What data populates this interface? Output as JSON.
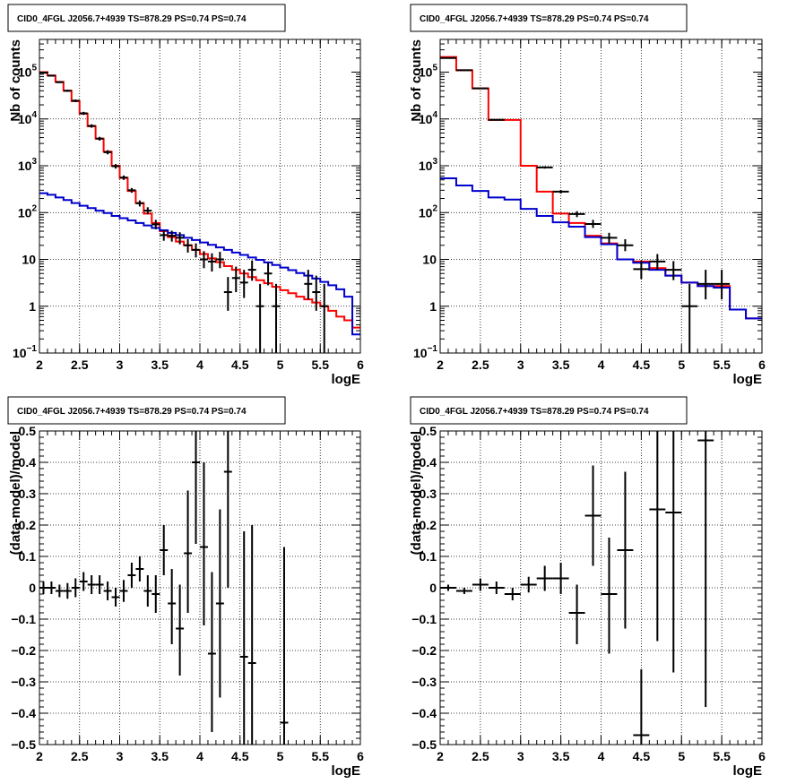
{
  "chart_data": [
    {
      "type": "histogram",
      "title": "CID0_4FGL J2056.7+4939 TS=878.29 PS=0.74 PS=0.74",
      "xlabel": "logE",
      "ylabel": "Nb of counts",
      "xlim": [
        2,
        6
      ],
      "ylim": [
        0.1,
        500000
      ],
      "yscale": "log",
      "grid": true,
      "x_ticks": [
        "2",
        "2.5",
        "3",
        "3.5",
        "4",
        "4.5",
        "5",
        "5.5",
        "6"
      ],
      "y_ticks": [
        {
          "v": 0.1,
          "b": "10",
          "e": "−1"
        },
        {
          "v": 1,
          "b": "1",
          "e": ""
        },
        {
          "v": 10,
          "b": "10",
          "e": ""
        },
        {
          "v": 100,
          "b": "10",
          "e": "2"
        },
        {
          "v": 1000,
          "b": "10",
          "e": "3"
        },
        {
          "v": 10000,
          "b": "10",
          "e": "4"
        },
        {
          "v": 100000,
          "b": "10",
          "e": "5"
        }
      ],
      "bin_edges": [
        2.0,
        2.1,
        2.2,
        2.3,
        2.4,
        2.5,
        2.6,
        2.7,
        2.8,
        2.9,
        3.0,
        3.1,
        3.2,
        3.3,
        3.4,
        3.5,
        3.6,
        3.7,
        3.8,
        3.9,
        4.0,
        4.1,
        4.2,
        4.3,
        4.4,
        4.5,
        4.6,
        4.7,
        4.8,
        4.9,
        5.0,
        5.1,
        5.2,
        5.3,
        5.4,
        5.5,
        5.6,
        5.7,
        5.8,
        5.9,
        6.0
      ],
      "series": [
        {
          "color": "#ff0000",
          "kind": "step",
          "values": [
            100000,
            85000,
            62000,
            40000,
            24000,
            13000,
            7000,
            3800,
            2000,
            1000,
            550,
            290,
            160,
            95,
            60,
            40,
            30,
            24,
            20,
            16,
            13,
            10.5,
            8.7,
            7.2,
            6.0,
            5.0,
            4.2,
            3.6,
            3.1,
            2.6,
            2.2,
            1.9,
            1.6,
            1.4,
            1.2,
            1.0,
            0.8,
            0.6,
            0.5,
            0.35
          ]
        },
        {
          "color": "#0000cc",
          "kind": "step",
          "values": [
            260,
            240,
            210,
            185,
            160,
            140,
            125,
            110,
            98,
            85,
            76,
            68,
            60,
            53,
            47,
            42,
            37,
            33,
            29,
            26,
            23,
            20.5,
            18,
            16,
            14,
            12.5,
            11,
            9.8,
            8.6,
            7.6,
            6.7,
            5.9,
            5.1,
            4.5,
            3.9,
            3.3,
            2.8,
            2.3,
            1.6,
            0.25
          ]
        },
        {
          "color": "#000000",
          "kind": "points",
          "points": [
            {
              "x": 2.05,
              "y": 97000,
              "lo": 94000,
              "hi": 100000
            },
            {
              "x": 2.15,
              "y": 84000,
              "lo": 81000,
              "hi": 87000
            },
            {
              "x": 2.25,
              "y": 61000,
              "lo": 58500,
              "hi": 63500
            },
            {
              "x": 2.35,
              "y": 40000,
              "lo": 38000,
              "hi": 42000
            },
            {
              "x": 2.45,
              "y": 24500,
              "lo": 23000,
              "hi": 26000
            },
            {
              "x": 2.55,
              "y": 13200,
              "lo": 12200,
              "hi": 14200
            },
            {
              "x": 2.65,
              "y": 7100,
              "lo": 6500,
              "hi": 7700
            },
            {
              "x": 2.75,
              "y": 3800,
              "lo": 3450,
              "hi": 4150
            },
            {
              "x": 2.85,
              "y": 1950,
              "lo": 1750,
              "hi": 2150
            },
            {
              "x": 2.95,
              "y": 980,
              "lo": 870,
              "hi": 1090
            },
            {
              "x": 3.05,
              "y": 560,
              "lo": 500,
              "hi": 620
            },
            {
              "x": 3.15,
              "y": 300,
              "lo": 265,
              "hi": 335
            },
            {
              "x": 3.25,
              "y": 158,
              "lo": 135,
              "hi": 182
            },
            {
              "x": 3.35,
              "y": 110,
              "lo": 92,
              "hi": 130
            },
            {
              "x": 3.45,
              "y": 56,
              "lo": 44,
              "hi": 70
            },
            {
              "x": 3.55,
              "y": 33,
              "lo": 25,
              "hi": 42
            },
            {
              "x": 3.65,
              "y": 32,
              "lo": 24,
              "hi": 41
            },
            {
              "x": 3.75,
              "y": 29,
              "lo": 21,
              "hi": 38
            },
            {
              "x": 3.85,
              "y": 20,
              "lo": 14,
              "hi": 27
            },
            {
              "x": 3.95,
              "y": 16,
              "lo": 11,
              "hi": 22
            },
            {
              "x": 4.05,
              "y": 10,
              "lo": 6.5,
              "hi": 15
            },
            {
              "x": 4.15,
              "y": 9,
              "lo": 5.5,
              "hi": 13.5
            },
            {
              "x": 4.25,
              "y": 10,
              "lo": 6.5,
              "hi": 14.5
            },
            {
              "x": 4.35,
              "y": 2,
              "lo": 0.8,
              "hi": 4.2
            },
            {
              "x": 4.45,
              "y": 4,
              "lo": 2,
              "hi": 7
            },
            {
              "x": 4.55,
              "y": 3.2,
              "lo": 1.5,
              "hi": 6
            },
            {
              "x": 4.65,
              "y": 6,
              "lo": 3.5,
              "hi": 9.5
            },
            {
              "x": 4.75,
              "y": 1,
              "lo": 0.1,
              "hi": 3
            },
            {
              "x": 4.85,
              "y": 5,
              "lo": 2.8,
              "hi": 8.5
            },
            {
              "x": 4.95,
              "y": 1,
              "lo": 0.1,
              "hi": 3
            },
            {
              "x": 5.35,
              "y": 3,
              "lo": 1.4,
              "hi": 6
            },
            {
              "x": 5.45,
              "y": 2,
              "lo": 0.8,
              "hi": 4.5
            },
            {
              "x": 5.55,
              "y": 1,
              "lo": 0.1,
              "hi": 3
            }
          ]
        }
      ]
    },
    {
      "type": "histogram",
      "title": "CID0_4FGL J2056.7+4939 TS=878.29 PS=0.74 PS=0.74",
      "xlabel": "logE",
      "ylabel": "Nb of counts",
      "xlim": [
        2,
        6
      ],
      "ylim": [
        0.1,
        500000
      ],
      "yscale": "log",
      "grid": true,
      "x_ticks": [
        "2",
        "2.5",
        "3",
        "3.5",
        "4",
        "4.5",
        "5",
        "5.5",
        "6"
      ],
      "y_ticks": [
        {
          "v": 0.1,
          "b": "10",
          "e": "−1"
        },
        {
          "v": 1,
          "b": "1",
          "e": ""
        },
        {
          "v": 10,
          "b": "10",
          "e": ""
        },
        {
          "v": 100,
          "b": "10",
          "e": "2"
        },
        {
          "v": 1000,
          "b": "10",
          "e": "3"
        },
        {
          "v": 10000,
          "b": "10",
          "e": "4"
        },
        {
          "v": 100000,
          "b": "10",
          "e": "5"
        }
      ],
      "bin_edges": [
        2.0,
        2.2,
        2.4,
        2.6,
        2.8,
        3.0,
        3.2,
        3.4,
        3.6,
        3.8,
        4.0,
        4.2,
        4.4,
        4.6,
        4.8,
        5.0,
        5.2,
        5.4,
        5.6,
        5.8,
        6.0
      ],
      "series": [
        {
          "color": "#ff0000",
          "kind": "step",
          "values": [
            210000,
            110000,
            45000,
            9500,
            9500,
            1000,
            280,
            95,
            60,
            32,
            22,
            10,
            9,
            6.5,
            4.5,
            3.2,
            2.7,
            2.7,
            0.85,
            0.55
          ]
        },
        {
          "color": "#0000cc",
          "kind": "step",
          "values": [
            540,
            380,
            290,
            210,
            190,
            120,
            85,
            62,
            50,
            30,
            21,
            10,
            8.5,
            6,
            4.5,
            3.2,
            2.7,
            2.5,
            0.85,
            0.55
          ]
        },
        {
          "color": "#000000",
          "kind": "points",
          "points": [
            {
              "x": 2.1,
              "y": 200000,
              "lo": 199000,
              "hi": 201000
            },
            {
              "x": 2.3,
              "y": 110000,
              "lo": 109000,
              "hi": 111000
            },
            {
              "x": 2.5,
              "y": 45000,
              "lo": 44300,
              "hi": 45700
            },
            {
              "x": 2.7,
              "y": 9600,
              "lo": 9300,
              "hi": 9900
            },
            {
              "x": 3.3,
              "y": 920,
              "lo": 870,
              "hi": 970
            },
            {
              "x": 3.5,
              "y": 280,
              "lo": 255,
              "hi": 305
            },
            {
              "x": 3.7,
              "y": 93,
              "lo": 80,
              "hi": 107
            },
            {
              "x": 3.9,
              "y": 57,
              "lo": 47,
              "hi": 70
            },
            {
              "x": 4.1,
              "y": 29,
              "lo": 22,
              "hi": 37
            },
            {
              "x": 4.3,
              "y": 20,
              "lo": 15,
              "hi": 27
            },
            {
              "x": 4.5,
              "y": 6.2,
              "lo": 3.8,
              "hi": 9.5
            },
            {
              "x": 4.7,
              "y": 9,
              "lo": 6,
              "hi": 13
            },
            {
              "x": 4.9,
              "y": 6,
              "lo": 3.6,
              "hi": 9.2
            },
            {
              "x": 5.1,
              "y": 1,
              "lo": 0.1,
              "hi": 3
            },
            {
              "x": 5.3,
              "y": 3,
              "lo": 1.4,
              "hi": 6
            },
            {
              "x": 5.5,
              "y": 3,
              "lo": 1.4,
              "hi": 6
            }
          ]
        }
      ]
    },
    {
      "type": "scatter",
      "title": "CID0_4FGL J2056.7+4939 TS=878.29 PS=0.74 PS=0.74",
      "xlabel": "logE",
      "ylabel": "(data-model)/model",
      "xlim": [
        2,
        6
      ],
      "ylim": [
        -0.5,
        0.5
      ],
      "grid": true,
      "x_ticks": [
        "2",
        "2.5",
        "3",
        "3.5",
        "4",
        "4.5",
        "5",
        "5.5",
        "6"
      ],
      "y_ticks": [
        "−0.5",
        "−0.4",
        "−0.3",
        "−0.2",
        "−0.1",
        "0",
        "0.1",
        "0.2",
        "0.3",
        "0.4",
        "0.5"
      ],
      "bin_half_width": 0.05,
      "points": [
        {
          "x": 2.05,
          "y": 0.0,
          "lo": -0.02,
          "hi": 0.02
        },
        {
          "x": 2.15,
          "y": 0.0,
          "lo": -0.02,
          "hi": 0.02
        },
        {
          "x": 2.25,
          "y": -0.01,
          "lo": -0.03,
          "hi": 0.01
        },
        {
          "x": 2.35,
          "y": -0.01,
          "lo": -0.035,
          "hi": 0.015
        },
        {
          "x": 2.45,
          "y": 0.0,
          "lo": -0.03,
          "hi": 0.03
        },
        {
          "x": 2.55,
          "y": 0.02,
          "lo": -0.01,
          "hi": 0.05
        },
        {
          "x": 2.65,
          "y": 0.01,
          "lo": -0.02,
          "hi": 0.04
        },
        {
          "x": 2.75,
          "y": 0.01,
          "lo": -0.02,
          "hi": 0.04
        },
        {
          "x": 2.85,
          "y": -0.01,
          "lo": -0.04,
          "hi": 0.02
        },
        {
          "x": 2.95,
          "y": -0.03,
          "lo": -0.06,
          "hi": 0.0
        },
        {
          "x": 3.05,
          "y": -0.01,
          "lo": -0.045,
          "hi": 0.025
        },
        {
          "x": 3.15,
          "y": 0.04,
          "lo": 0.0,
          "hi": 0.08
        },
        {
          "x": 3.25,
          "y": 0.06,
          "lo": 0.02,
          "hi": 0.1
        },
        {
          "x": 3.35,
          "y": -0.01,
          "lo": -0.06,
          "hi": 0.04
        },
        {
          "x": 3.45,
          "y": -0.02,
          "lo": -0.08,
          "hi": 0.04
        },
        {
          "x": 3.55,
          "y": 0.12,
          "lo": 0.04,
          "hi": 0.2
        },
        {
          "x": 3.65,
          "y": -0.05,
          "lo": -0.18,
          "hi": 0.06
        },
        {
          "x": 3.75,
          "y": -0.13,
          "lo": -0.28,
          "hi": 0.01
        },
        {
          "x": 3.85,
          "y": 0.11,
          "lo": -0.08,
          "hi": 0.31
        },
        {
          "x": 3.95,
          "y": 0.4,
          "lo": 0.14,
          "hi": 0.64
        },
        {
          "x": 4.05,
          "y": 0.13,
          "lo": -0.12,
          "hi": 0.4
        },
        {
          "x": 4.15,
          "y": -0.21,
          "lo": -0.46,
          "hi": 0.05
        },
        {
          "x": 4.25,
          "y": -0.05,
          "lo": -0.35,
          "hi": 0.25
        },
        {
          "x": 4.35,
          "y": 0.37,
          "lo": 0.0,
          "hi": 0.74
        },
        {
          "x": 4.55,
          "y": -0.22,
          "lo": -0.6,
          "hi": 0.18
        },
        {
          "x": 4.65,
          "y": -0.24,
          "lo": -0.68,
          "hi": 0.2
        },
        {
          "x": 5.05,
          "y": -0.43,
          "lo": -1.0,
          "hi": 0.13
        }
      ]
    },
    {
      "type": "scatter",
      "title": "CID0_4FGL J2056.7+4939 TS=878.29 PS=0.74 PS=0.74",
      "xlabel": "logE",
      "ylabel": "(data-model)/model",
      "xlim": [
        2,
        6
      ],
      "ylim": [
        -0.5,
        0.5
      ],
      "grid": true,
      "x_ticks": [
        "2",
        "2.5",
        "3",
        "3.5",
        "4",
        "4.5",
        "5",
        "5.5",
        "6"
      ],
      "y_ticks": [
        "−0.5",
        "−0.4",
        "−0.3",
        "−0.2",
        "−0.1",
        "0",
        "0.1",
        "0.2",
        "0.3",
        "0.4",
        "0.5"
      ],
      "bin_half_width": 0.1,
      "points": [
        {
          "x": 2.1,
          "y": 0.0,
          "lo": -0.01,
          "hi": 0.01
        },
        {
          "x": 2.3,
          "y": -0.01,
          "lo": -0.02,
          "hi": 0.0
        },
        {
          "x": 2.5,
          "y": 0.01,
          "lo": -0.01,
          "hi": 0.03
        },
        {
          "x": 2.7,
          "y": 0.0,
          "lo": -0.02,
          "hi": 0.02
        },
        {
          "x": 2.9,
          "y": -0.02,
          "lo": -0.04,
          "hi": 0.0
        },
        {
          "x": 3.1,
          "y": 0.01,
          "lo": -0.015,
          "hi": 0.035
        },
        {
          "x": 3.3,
          "y": 0.03,
          "lo": -0.01,
          "hi": 0.07
        },
        {
          "x": 3.5,
          "y": 0.03,
          "lo": -0.02,
          "hi": 0.08
        },
        {
          "x": 3.7,
          "y": -0.08,
          "lo": -0.18,
          "hi": 0.01
        },
        {
          "x": 3.9,
          "y": 0.23,
          "lo": 0.07,
          "hi": 0.39
        },
        {
          "x": 4.1,
          "y": -0.02,
          "lo": -0.21,
          "hi": 0.16
        },
        {
          "x": 4.3,
          "y": 0.12,
          "lo": -0.13,
          "hi": 0.37
        },
        {
          "x": 4.5,
          "y": -0.47,
          "lo": -0.68,
          "hi": -0.26
        },
        {
          "x": 4.7,
          "y": 0.25,
          "lo": -0.17,
          "hi": 0.68
        },
        {
          "x": 4.9,
          "y": 0.24,
          "lo": -0.27,
          "hi": 0.75
        },
        {
          "x": 5.3,
          "y": 0.47,
          "lo": -0.38,
          "hi": 1.3
        }
      ]
    }
  ]
}
